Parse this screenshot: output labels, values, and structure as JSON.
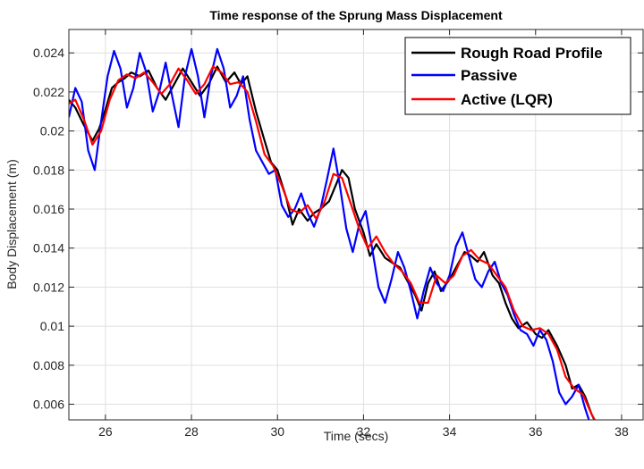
{
  "chart_data": {
    "type": "line",
    "title": "Time response of the Sprung Mass Displacement",
    "xlabel": "Time (secs)",
    "ylabel": "Body Displacement (m)",
    "xlim": [
      25.15,
      38.5
    ],
    "ylim": [
      0.0052,
      0.0252
    ],
    "xticks": [
      26,
      28,
      30,
      32,
      34,
      36,
      38
    ],
    "xtick_labels": [
      "26",
      "28",
      "30",
      "32",
      "34",
      "36",
      "38"
    ],
    "yticks": [
      0.006,
      0.008,
      0.01,
      0.012,
      0.014,
      0.016,
      0.018,
      0.02,
      0.022,
      0.024
    ],
    "ytick_labels": [
      "0.006",
      "0.008",
      "0.01",
      "0.012",
      "0.014",
      "0.016",
      "0.018",
      "0.02",
      "0.022",
      "0.024"
    ],
    "grid": true,
    "legend_position": "top-right",
    "series": [
      {
        "name": "Rough Road Profile",
        "color": "#000000",
        "x": [
          25.15,
          25.3,
          25.5,
          25.7,
          25.85,
          26.0,
          26.15,
          26.3,
          26.45,
          26.6,
          26.8,
          27.0,
          27.2,
          27.4,
          27.6,
          27.8,
          28.0,
          28.2,
          28.4,
          28.6,
          28.8,
          29.0,
          29.15,
          29.3,
          29.5,
          29.7,
          29.85,
          30.0,
          30.2,
          30.35,
          30.5,
          30.7,
          30.85,
          31.0,
          31.2,
          31.35,
          31.5,
          31.65,
          31.8,
          32.0,
          32.15,
          32.3,
          32.5,
          32.7,
          32.85,
          33.0,
          33.2,
          33.35,
          33.5,
          33.65,
          33.8,
          34.0,
          34.2,
          34.35,
          34.5,
          34.65,
          34.8,
          35.0,
          35.15,
          35.3,
          35.45,
          35.6,
          35.8,
          36.0,
          36.15,
          36.3,
          36.5,
          36.7,
          36.85,
          37.0,
          37.15,
          37.3,
          37.45
        ],
        "y": [
          0.0216,
          0.0212,
          0.0203,
          0.0195,
          0.0201,
          0.0211,
          0.0222,
          0.0225,
          0.0227,
          0.023,
          0.0228,
          0.0231,
          0.0222,
          0.0216,
          0.0224,
          0.0232,
          0.0225,
          0.0218,
          0.0224,
          0.0233,
          0.0225,
          0.023,
          0.0224,
          0.0228,
          0.021,
          0.0195,
          0.0184,
          0.018,
          0.0166,
          0.0152,
          0.016,
          0.0154,
          0.0158,
          0.016,
          0.0164,
          0.0172,
          0.018,
          0.0176,
          0.016,
          0.0148,
          0.0136,
          0.0142,
          0.0135,
          0.0132,
          0.013,
          0.0124,
          0.0116,
          0.0108,
          0.0122,
          0.0128,
          0.0118,
          0.0124,
          0.0132,
          0.0138,
          0.0136,
          0.0133,
          0.0138,
          0.0126,
          0.0122,
          0.0112,
          0.0104,
          0.0099,
          0.0102,
          0.0096,
          0.0094,
          0.0098,
          0.009,
          0.008,
          0.0068,
          0.007,
          0.0064,
          0.0055,
          0.0048
        ]
      },
      {
        "name": "Passive",
        "color": "#0000ff",
        "x": [
          25.15,
          25.3,
          25.45,
          25.6,
          25.75,
          25.9,
          26.05,
          26.2,
          26.35,
          26.5,
          26.65,
          26.8,
          26.95,
          27.1,
          27.25,
          27.4,
          27.55,
          27.7,
          27.85,
          28.0,
          28.15,
          28.3,
          28.45,
          28.6,
          28.75,
          28.9,
          29.05,
          29.2,
          29.35,
          29.5,
          29.65,
          29.8,
          29.95,
          30.1,
          30.25,
          30.4,
          30.55,
          30.7,
          30.85,
          31.0,
          31.15,
          31.3,
          31.45,
          31.6,
          31.75,
          31.9,
          32.05,
          32.2,
          32.35,
          32.5,
          32.65,
          32.8,
          32.95,
          33.1,
          33.25,
          33.4,
          33.55,
          33.7,
          33.85,
          34.0,
          34.15,
          34.3,
          34.45,
          34.6,
          34.75,
          34.9,
          35.05,
          35.2,
          35.35,
          35.5,
          35.65,
          35.8,
          35.95,
          36.1,
          36.25,
          36.4,
          36.55,
          36.7,
          36.85,
          37.0,
          37.15,
          37.3,
          37.45,
          37.6
        ],
        "y": [
          0.0207,
          0.0222,
          0.0215,
          0.019,
          0.018,
          0.0205,
          0.0228,
          0.0241,
          0.0232,
          0.0212,
          0.0222,
          0.024,
          0.023,
          0.021,
          0.022,
          0.0235,
          0.0218,
          0.0202,
          0.0228,
          0.0242,
          0.0228,
          0.0207,
          0.0228,
          0.0242,
          0.0232,
          0.0212,
          0.0218,
          0.0228,
          0.0206,
          0.019,
          0.0184,
          0.0178,
          0.018,
          0.0162,
          0.0156,
          0.016,
          0.0168,
          0.0158,
          0.0151,
          0.016,
          0.0175,
          0.0191,
          0.0172,
          0.015,
          0.0138,
          0.0152,
          0.0159,
          0.014,
          0.012,
          0.0112,
          0.0124,
          0.0138,
          0.013,
          0.0118,
          0.0104,
          0.0118,
          0.013,
          0.0122,
          0.0118,
          0.0126,
          0.0141,
          0.0148,
          0.0136,
          0.0124,
          0.012,
          0.0128,
          0.0133,
          0.0122,
          0.0116,
          0.0106,
          0.0098,
          0.0096,
          0.009,
          0.0098,
          0.0093,
          0.0082,
          0.0066,
          0.006,
          0.0064,
          0.007,
          0.0058,
          0.0048,
          0.0044,
          0.0046
        ]
      },
      {
        "name": "Active (LQR)",
        "color": "#ff0000",
        "x": [
          25.15,
          25.3,
          25.5,
          25.7,
          25.9,
          26.1,
          26.3,
          26.5,
          26.7,
          26.9,
          27.1,
          27.3,
          27.5,
          27.7,
          27.9,
          28.1,
          28.3,
          28.5,
          28.7,
          28.9,
          29.1,
          29.3,
          29.5,
          29.7,
          29.9,
          30.1,
          30.3,
          30.5,
          30.7,
          30.9,
          31.1,
          31.3,
          31.5,
          31.7,
          31.9,
          32.1,
          32.3,
          32.5,
          32.7,
          32.9,
          33.1,
          33.3,
          33.5,
          33.7,
          33.9,
          34.1,
          34.3,
          34.5,
          34.7,
          34.9,
          35.1,
          35.3,
          35.5,
          35.7,
          35.9,
          36.1,
          36.3,
          36.5,
          36.7,
          36.9,
          37.1,
          37.3,
          37.5
        ],
        "y": [
          0.0214,
          0.0216,
          0.0206,
          0.0193,
          0.02,
          0.0216,
          0.0226,
          0.0229,
          0.0227,
          0.023,
          0.0225,
          0.0219,
          0.0224,
          0.0232,
          0.0226,
          0.0219,
          0.0224,
          0.0233,
          0.023,
          0.0224,
          0.0225,
          0.022,
          0.0205,
          0.0188,
          0.0182,
          0.0172,
          0.016,
          0.0158,
          0.0162,
          0.0155,
          0.0164,
          0.0178,
          0.0176,
          0.0163,
          0.015,
          0.014,
          0.0146,
          0.0138,
          0.0132,
          0.0128,
          0.0122,
          0.0112,
          0.0112,
          0.0126,
          0.0122,
          0.0126,
          0.0136,
          0.0139,
          0.0134,
          0.0132,
          0.0126,
          0.012,
          0.0108,
          0.01,
          0.0098,
          0.0099,
          0.0096,
          0.0088,
          0.0074,
          0.0068,
          0.0065,
          0.0055,
          0.0047
        ]
      }
    ]
  }
}
